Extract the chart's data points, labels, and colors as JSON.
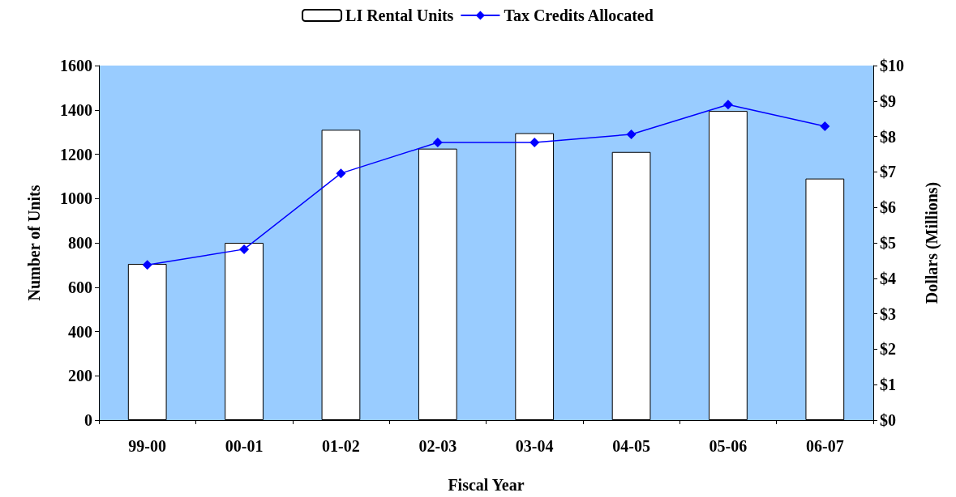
{
  "chart_data": {
    "type": "bar",
    "xlabel": "Fiscal Year",
    "ylabel": "Number of Units",
    "y2label": "Dollars (Millions)",
    "categories": [
      "99-00",
      "00-01",
      "01-02",
      "02-03",
      "03-04",
      "04-05",
      "05-06",
      "06-07"
    ],
    "series": [
      {
        "name": "LI Rental Units",
        "color": "#ffffff",
        "values": [
          705,
          800,
          1310,
          1225,
          1295,
          1210,
          1395,
          1090
        ]
      },
      {
        "name": "Tax Credits Allocated",
        "type": "line",
        "axis": "y2",
        "color": "#0000ff",
        "marker": "diamond",
        "values": [
          4.38,
          4.82,
          6.96,
          7.83,
          7.83,
          8.06,
          8.9,
          8.29
        ]
      }
    ],
    "ylim": [
      0,
      1600
    ],
    "yticks": [
      0,
      200,
      400,
      600,
      800,
      1000,
      1200,
      1400,
      1600
    ],
    "y2lim": [
      0,
      10
    ],
    "y2ticks": [
      {
        "value": 0,
        "label": "$0"
      },
      {
        "value": 1,
        "label": "$1"
      },
      {
        "value": 2,
        "label": "$2"
      },
      {
        "value": 3,
        "label": "$3"
      },
      {
        "value": 4,
        "label": "$4"
      },
      {
        "value": 5,
        "label": "$5"
      },
      {
        "value": 6,
        "label": "$6"
      },
      {
        "value": 7,
        "label": "$7"
      },
      {
        "value": 8,
        "label": "$8"
      },
      {
        "value": 9,
        "label": "$9"
      },
      {
        "value": 10,
        "label": "$10"
      }
    ],
    "grid": false,
    "legend": "top"
  }
}
